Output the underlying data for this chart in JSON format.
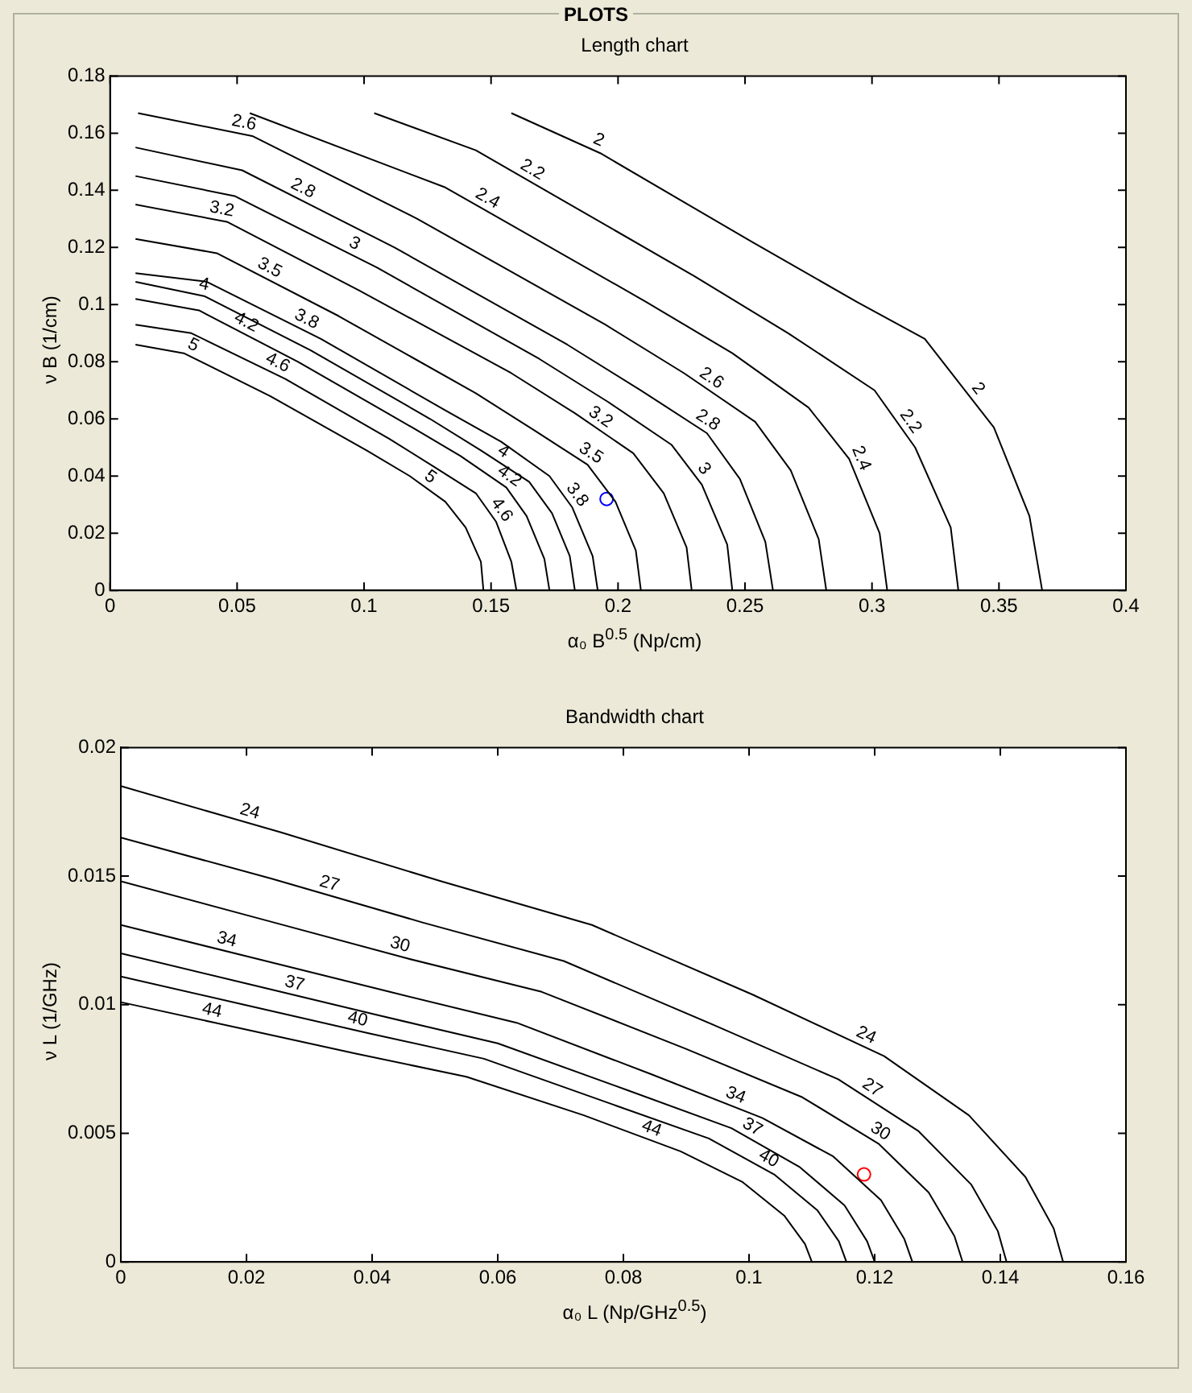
{
  "chart_data": [
    {
      "type": "line",
      "title": "Length chart",
      "xlabel": "α₀ B$^{0.5}$ (Np/cm)",
      "ylabel": "ν B (1/cm)",
      "annotations": [
        "PLOTS"
      ],
      "xlim": [
        0,
        0.4
      ],
      "xticks": [
        0,
        0.05,
        0.1,
        0.15,
        0.2,
        0.25,
        0.3,
        0.35,
        0.4
      ],
      "ylim": [
        0,
        0.18
      ],
      "yticks": [
        0,
        0.02,
        0.04,
        0.06,
        0.08,
        0.1,
        0.12,
        0.14,
        0.16,
        0.18
      ],
      "series": [
        {
          "name": "2",
          "color": "#000000",
          "x": [
            0.158,
            0.193,
            0.2526,
            0.294,
            0.3208,
            0.348,
            0.362,
            0.367
          ],
          "values": [
            0.167,
            0.153,
            0.122,
            0.101,
            0.088,
            0.057,
            0.026,
            0
          ]
        },
        {
          "name": "2.2",
          "color": "#000000",
          "x": [
            0.104,
            0.144,
            0.23,
            0.267,
            0.301,
            0.317,
            0.331,
            0.334
          ],
          "values": [
            0.167,
            0.154,
            0.11,
            0.09,
            0.07,
            0.05,
            0.022,
            0
          ]
        },
        {
          "name": "2.4",
          "color": "#000000",
          "x": [
            0.055,
            0.132,
            0.211,
            0.245,
            0.275,
            0.291,
            0.303,
            0.306
          ],
          "values": [
            0.167,
            0.141,
            0.101,
            0.083,
            0.064,
            0.046,
            0.02,
            0
          ]
        },
        {
          "name": "2.6",
          "color": "#000000",
          "x": [
            0.011,
            0.056,
            0.121,
            0.195,
            0.226,
            0.254,
            0.268,
            0.279,
            0.282
          ],
          "values": [
            0.167,
            0.159,
            0.13,
            0.093,
            0.076,
            0.059,
            0.042,
            0.018,
            0
          ]
        },
        {
          "name": "2.8",
          "color": "#000000",
          "x": [
            0.01,
            0.052,
            0.112,
            0.18,
            0.209,
            0.235,
            0.248,
            0.258,
            0.261
          ],
          "values": [
            0.155,
            0.147,
            0.12,
            0.086,
            0.07,
            0.055,
            0.039,
            0.017,
            0
          ]
        },
        {
          "name": "3",
          "color": "#000000",
          "x": [
            0.01,
            0.049,
            0.105,
            0.169,
            0.196,
            0.221,
            0.233,
            0.243,
            0.245
          ],
          "values": [
            0.145,
            0.138,
            0.113,
            0.081,
            0.066,
            0.051,
            0.037,
            0.016,
            0
          ]
        },
        {
          "name": "3.2",
          "color": "#000000",
          "x": [
            0.01,
            0.046,
            0.098,
            0.158,
            0.183,
            0.206,
            0.218,
            0.227,
            0.229
          ],
          "values": [
            0.135,
            0.129,
            0.105,
            0.076,
            0.062,
            0.048,
            0.034,
            0.015,
            0
          ]
        },
        {
          "name": "3.5",
          "color": "#000000",
          "x": [
            0.01,
            0.042,
            0.09,
            0.144,
            0.167,
            0.188,
            0.199,
            0.207,
            0.209
          ],
          "values": [
            0.123,
            0.118,
            0.096,
            0.069,
            0.056,
            0.044,
            0.031,
            0.014,
            0
          ]
        },
        {
          "name": "3.8",
          "color": "#000000",
          "x": [
            0.01,
            0.038,
            0.083,
            0.132,
            0.154,
            0.173,
            0.182,
            0.19,
            0.192
          ],
          "values": [
            0.111,
            0.108,
            0.088,
            0.063,
            0.052,
            0.04,
            0.029,
            0.012,
            0
          ]
        },
        {
          "name": "4",
          "color": "#000000",
          "x": [
            0.01,
            0.037,
            0.079,
            0.126,
            0.146,
            0.165,
            0.174,
            0.181,
            0.183
          ],
          "values": [
            0.108,
            0.103,
            0.084,
            0.06,
            0.049,
            0.038,
            0.027,
            0.012,
            0
          ]
        },
        {
          "name": "4.2",
          "color": "#000000",
          "x": [
            0.01,
            0.035,
            0.074,
            0.119,
            0.138,
            0.156,
            0.164,
            0.171,
            0.173
          ],
          "values": [
            0.102,
            0.098,
            0.08,
            0.057,
            0.047,
            0.036,
            0.026,
            0.011,
            0
          ]
        },
        {
          "name": "4.6",
          "color": "#000000",
          "x": [
            0.01,
            0.032,
            0.069,
            0.11,
            0.128,
            0.144,
            0.152,
            0.158,
            0.16
          ],
          "values": [
            0.093,
            0.09,
            0.074,
            0.053,
            0.043,
            0.034,
            0.024,
            0.01,
            0
          ]
        },
        {
          "name": "5",
          "color": "#000000",
          "x": [
            0.01,
            0.029,
            0.063,
            0.101,
            0.118,
            0.132,
            0.14,
            0.146,
            0.147
          ],
          "values": [
            0.086,
            0.083,
            0.068,
            0.049,
            0.04,
            0.031,
            0.022,
            0.01,
            0
          ]
        },
        {
          "type": "scatter",
          "marker": "circle",
          "color": "#0000ff",
          "x": [
            0.1955
          ],
          "values": [
            0.032
          ]
        }
      ]
    },
    {
      "type": "line",
      "title": "Bandwidth chart",
      "xlabel": "α₀ L (Np/GHz$^{0.5}$)",
      "ylabel": "ν L (1/GHz)",
      "xlim": [
        0,
        0.16
      ],
      "xticks": [
        0,
        0.02,
        0.04,
        0.06,
        0.08,
        0.1,
        0.12,
        0.14,
        0.16
      ],
      "ylim": [
        0,
        0.02
      ],
      "yticks": [
        0,
        0.005,
        0.01,
        0.015,
        0.02
      ],
      "series": [
        {
          "name": "24",
          "color": "#000000",
          "x": [
            0,
            0.0255,
            0.051,
            0.075,
            0.1005,
            0.1215,
            0.135,
            0.144,
            0.1485,
            0.15
          ],
          "values": [
            0.0185,
            0.0167,
            0.0148,
            0.0131,
            0.0104,
            0.008,
            0.0057,
            0.0033,
            0.0013,
            0
          ]
        },
        {
          "name": "27",
          "color": "#000000",
          "x": [
            0,
            0.024,
            0.048,
            0.0705,
            0.0945,
            0.1142,
            0.1269,
            0.1354,
            0.1396,
            0.141
          ],
          "values": [
            0.0165,
            0.0149,
            0.0132,
            0.0117,
            0.0092,
            0.0071,
            0.0051,
            0.003,
            0.0012,
            0
          ]
        },
        {
          "name": "30",
          "color": "#000000",
          "x": [
            0,
            0.0228,
            0.0456,
            0.067,
            0.0898,
            0.1085,
            0.1206,
            0.1286,
            0.1327,
            0.134
          ],
          "values": [
            0.0148,
            0.0133,
            0.0118,
            0.0105,
            0.0083,
            0.0064,
            0.0046,
            0.0027,
            0.001,
            0
          ]
        },
        {
          "name": "34",
          "color": "#000000",
          "x": [
            0,
            0.0214,
            0.0428,
            0.063,
            0.0844,
            0.1021,
            0.1134,
            0.121,
            0.1247,
            0.126
          ],
          "values": [
            0.0131,
            0.0118,
            0.0105,
            0.0093,
            0.0073,
            0.0056,
            0.0041,
            0.0024,
            0.0009,
            0
          ]
        },
        {
          "name": "37",
          "color": "#000000",
          "x": [
            0,
            0.0204,
            0.0408,
            0.06,
            0.0804,
            0.0972,
            0.108,
            0.1152,
            0.1188,
            0.12
          ],
          "values": [
            0.012,
            0.0108,
            0.0096,
            0.0085,
            0.0067,
            0.0052,
            0.0037,
            0.0022,
            0.0008,
            0
          ]
        },
        {
          "name": "40",
          "color": "#000000",
          "x": [
            0,
            0.0196,
            0.0393,
            0.0578,
            0.0774,
            0.0936,
            0.104,
            0.1109,
            0.1143,
            0.1155
          ],
          "values": [
            0.0111,
            0.01,
            0.0089,
            0.0079,
            0.0062,
            0.0048,
            0.0034,
            0.002,
            0.0008,
            0
          ]
        },
        {
          "name": "44",
          "color": "#000000",
          "x": [
            0,
            0.0187,
            0.0374,
            0.055,
            0.0737,
            0.0891,
            0.099,
            0.1056,
            0.1089,
            0.11
          ],
          "values": [
            0.0101,
            0.0091,
            0.0081,
            0.0072,
            0.0057,
            0.0043,
            0.0031,
            0.0018,
            0.0007,
            0
          ]
        },
        {
          "type": "scatter",
          "marker": "circle",
          "color": "#ff0000",
          "x": [
            0.1183
          ],
          "values": [
            0.0034
          ]
        }
      ]
    }
  ]
}
